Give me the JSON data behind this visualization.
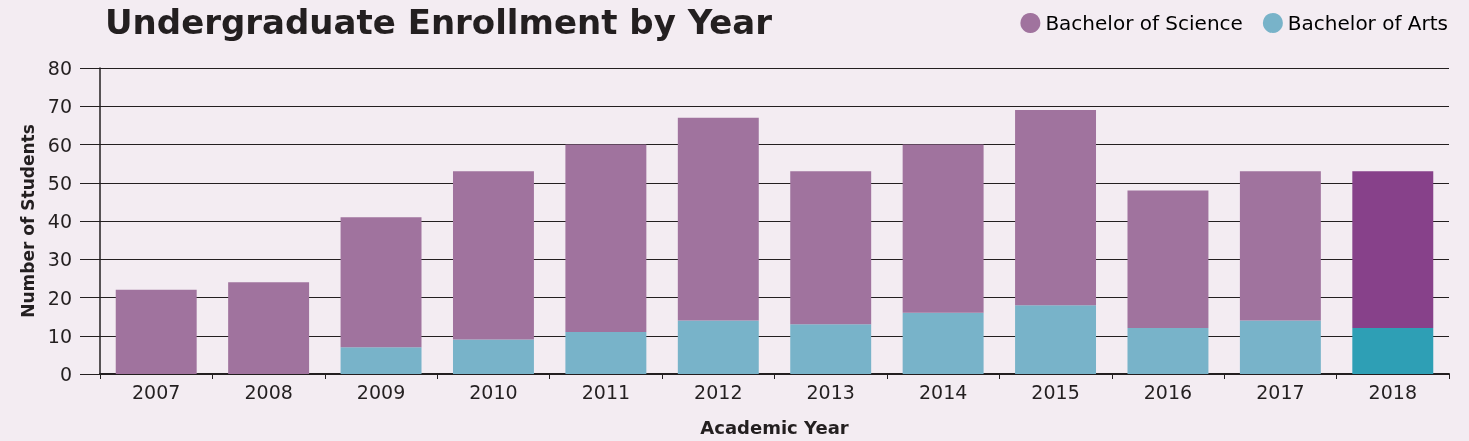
{
  "chart_data": {
    "type": "bar",
    "title": "Undergraduate Enrollment by Year",
    "xlabel": "Academic Year",
    "ylabel": "Number of Students",
    "categories": [
      "2007",
      "2008",
      "2009",
      "2010",
      "2011",
      "2012",
      "2013",
      "2014",
      "2015",
      "2016",
      "2017",
      "2018"
    ],
    "stacked": true,
    "series": [
      {
        "name": "Bachelor of Arts",
        "color": "#78b3c9",
        "colors": [
          "#78b3c9",
          "#78b3c9",
          "#78b3c9",
          "#78b3c9",
          "#78b3c9",
          "#78b3c9",
          "#78b3c9",
          "#78b3c9",
          "#78b3c9",
          "#78b3c9",
          "#78b3c9",
          "#2e9fb5"
        ],
        "values": [
          null,
          null,
          7,
          9,
          11,
          14,
          13,
          16,
          18,
          12,
          14,
          12
        ]
      },
      {
        "name": "Bachelor of Science",
        "color": "#a0739e",
        "colors": [
          "#a0739e",
          "#a0739e",
          "#a0739e",
          "#a0739e",
          "#a0739e",
          "#a0739e",
          "#a0739e",
          "#a0739e",
          "#a0739e",
          "#a0739e",
          "#a0739e",
          "#87418a"
        ],
        "values": [
          22,
          24,
          34,
          44,
          49,
          53,
          40,
          44,
          51,
          36,
          39,
          41
        ]
      }
    ],
    "ylim": [
      0,
      80
    ],
    "yticks": [
      0,
      10,
      20,
      30,
      40,
      50,
      60,
      70,
      80
    ],
    "grid": "y",
    "legend": "top right"
  }
}
